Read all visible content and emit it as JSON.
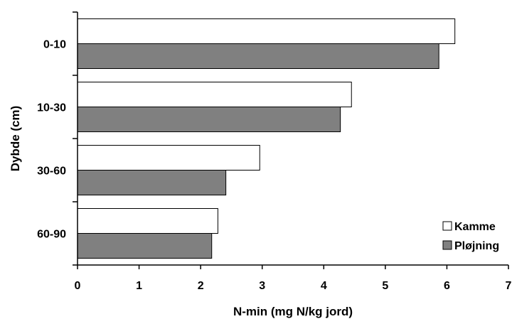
{
  "chart_data": {
    "type": "bar",
    "orientation": "horizontal",
    "categories": [
      "0-10",
      "10-30",
      "30-60",
      "60-90"
    ],
    "series": [
      {
        "name": "Kamme",
        "values": [
          6.13,
          4.45,
          2.96,
          2.28
        ],
        "color": "#ffffff"
      },
      {
        "name": "Pløjning",
        "values": [
          5.87,
          4.27,
          2.41,
          2.18
        ],
        "color": "#808080"
      }
    ],
    "xlabel": "N-min (mg N/kg jord)",
    "ylabel": "Dybde (cm)",
    "xlim": [
      0,
      7
    ],
    "xticks": [
      "0",
      "1",
      "2",
      "3",
      "4",
      "5",
      "6",
      "7"
    ],
    "grid": false,
    "legend_position": "bottom-right"
  }
}
